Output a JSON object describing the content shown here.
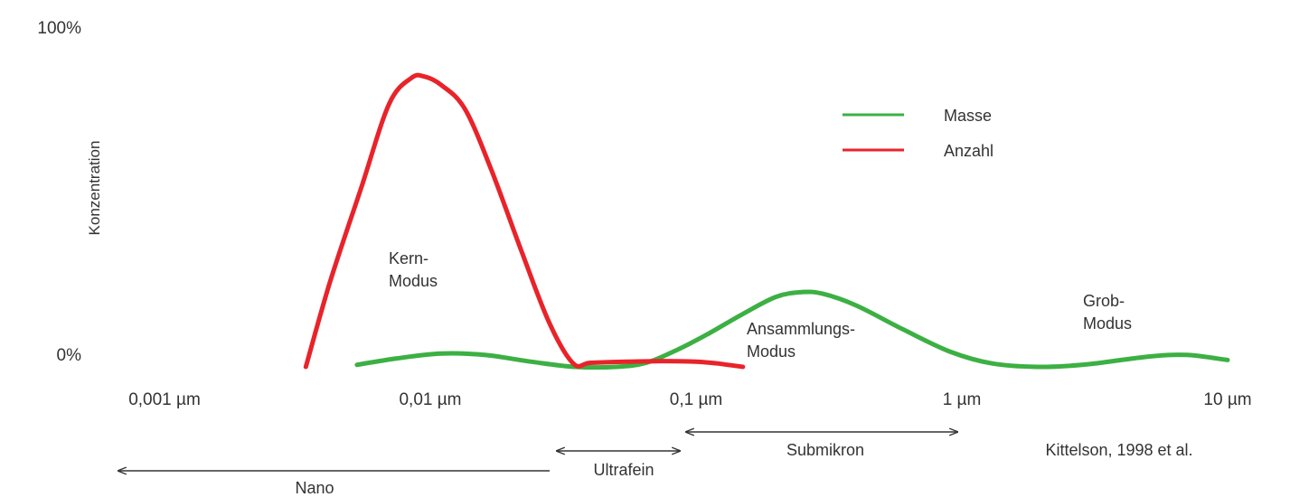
{
  "chart_data": {
    "type": "line",
    "x_scale": "log",
    "xlim_um": [
      0.001,
      10
    ],
    "y_axis_labels": {
      "top": "100%",
      "bottom": "0%"
    },
    "ylabel": "Konzentration",
    "x_tick_labels": [
      "0,001 µm",
      "0,01 µm",
      "0,1 µm",
      "1 µm",
      "10 µm"
    ],
    "x_tick_values_um": [
      0.001,
      0.01,
      0.1,
      1,
      10
    ],
    "ylim_percent": [
      0,
      100
    ],
    "grid": false,
    "legend_placement": "top-right",
    "series": [
      {
        "name": "Masse",
        "color": "#3cb043",
        "x_um": [
          0.0053,
          0.0075,
          0.011,
          0.016,
          0.024,
          0.035,
          0.05,
          0.065,
          0.085,
          0.11,
          0.15,
          0.2,
          0.25,
          0.3,
          0.4,
          0.6,
          0.9,
          1.3,
          2,
          3,
          5,
          7,
          10
        ],
        "y_percent": [
          0.6,
          2.5,
          3.9,
          3.5,
          1.5,
          0.0,
          0.0,
          1.2,
          5.0,
          9.5,
          15.5,
          20.5,
          21.9,
          21.4,
          18.0,
          11.0,
          4.5,
          1.0,
          0.0,
          0.8,
          3.0,
          3.5,
          2.0
        ]
      },
      {
        "name": "Anzahl",
        "color": "#e8232a",
        "x_um": [
          0.0034,
          0.0042,
          0.0055,
          0.007,
          0.0085,
          0.0095,
          0.011,
          0.0135,
          0.017,
          0.022,
          0.028,
          0.0345,
          0.04,
          0.055,
          0.075,
          0.1,
          0.12,
          0.15
        ],
        "y_percent": [
          0.0,
          25.0,
          52.5,
          77.0,
          84.6,
          85.0,
          82.5,
          75.5,
          57.5,
          34.0,
          13.0,
          1.0,
          1.2,
          1.5,
          1.7,
          1.5,
          1.0,
          0.0
        ]
      }
    ],
    "annotations": [
      {
        "id": "kern",
        "lines": [
          "Kern-",
          "Modus"
        ]
      },
      {
        "id": "ansammlung",
        "lines": [
          "Ansammlungs-",
          "Modus"
        ]
      },
      {
        "id": "grob",
        "lines": [
          "Grob-",
          "Modus"
        ]
      }
    ],
    "size_ranges": [
      {
        "id": "nano",
        "label": "Nano",
        "arrow": "left-only"
      },
      {
        "id": "ultrafein",
        "label": "Ultrafein",
        "arrow": "both"
      },
      {
        "id": "submikron",
        "label": "Submikron",
        "arrow": "both"
      }
    ],
    "source": "Kittelson, 1998 et al."
  }
}
